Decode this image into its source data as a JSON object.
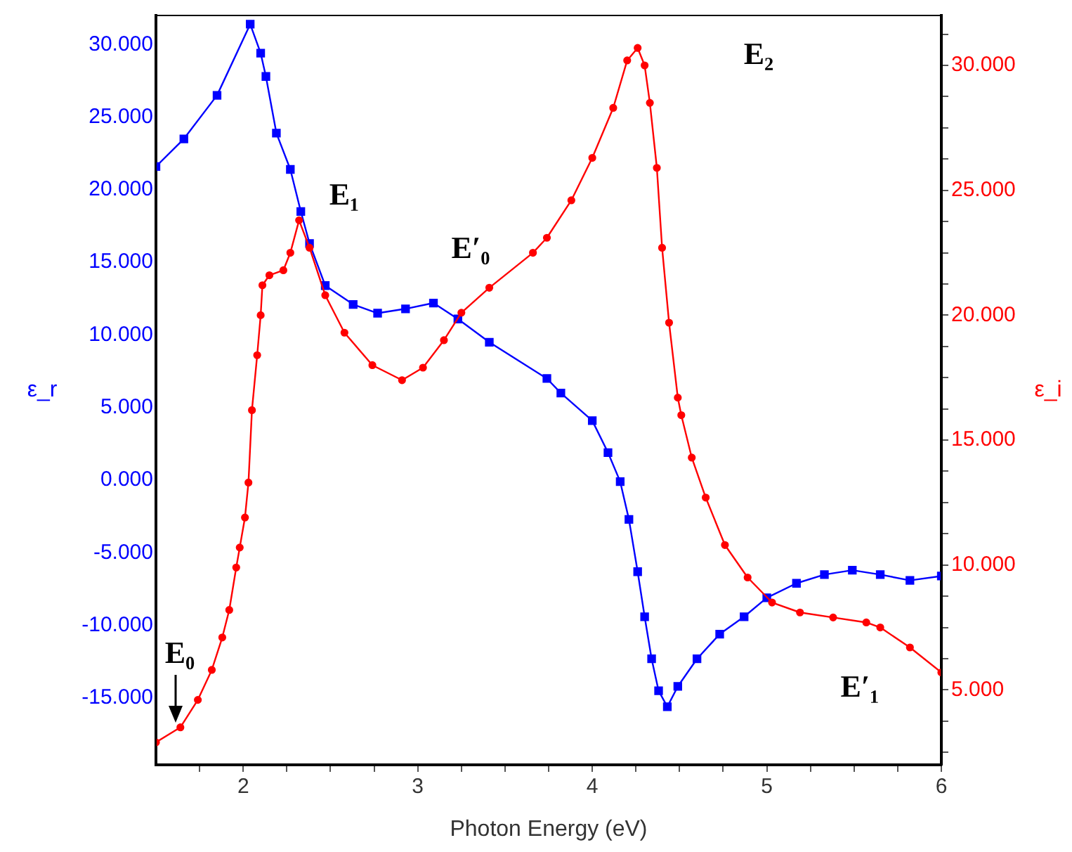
{
  "chart_data": {
    "type": "line",
    "xlabel": "Photon Energy (eV)",
    "ylabel": "ε_r",
    "y2label": "ε_i",
    "xlim": [
      1.5,
      6
    ],
    "xticks": [
      {
        "value": 1.75,
        "label": null
      },
      2,
      {
        "value": 2.25,
        "label": null
      },
      {
        "value": 2.5,
        "label": null
      },
      {
        "value": 2.75,
        "label": null
      },
      3,
      {
        "value": 3.25,
        "label": null
      },
      {
        "value": 3.5,
        "label": null
      },
      {
        "value": 3.75,
        "label": null
      },
      4,
      {
        "value": 4.25,
        "label": null
      },
      {
        "value": 4.5,
        "label": null
      },
      {
        "value": 4.75,
        "label": null
      },
      5,
      {
        "value": 5.25,
        "label": null
      },
      {
        "value": 5.5,
        "label": null
      },
      {
        "value": 5.75,
        "label": null
      },
      6
    ],
    "ylim": [
      -19.6,
      32
    ],
    "yticks": [
      {
        "value": -15,
        "label": "-15.000"
      },
      {
        "value": -10,
        "label": "-10.000"
      },
      {
        "value": -5,
        "label": "-5.000"
      },
      {
        "value": 0,
        "label": "0.000"
      },
      {
        "value": 5,
        "label": "5.000"
      },
      {
        "value": 10,
        "label": "10.000"
      },
      {
        "value": 15,
        "label": "15.000"
      },
      {
        "value": 20,
        "label": "20.000"
      },
      {
        "value": 25,
        "label": "25.000"
      },
      {
        "value": 30,
        "label": "30.000"
      }
    ],
    "y2lim": [
      2,
      32
    ],
    "y2ticks": [
      {
        "value": 2.5,
        "label": null
      },
      {
        "value": 3.75,
        "label": null
      },
      {
        "value": 5,
        "label": "5.000"
      },
      {
        "value": 6.25,
        "label": null
      },
      {
        "value": 7.5,
        "label": null
      },
      {
        "value": 8.75,
        "label": null
      },
      {
        "value": 10,
        "label": "10.000"
      },
      {
        "value": 11.25,
        "label": null
      },
      {
        "value": 12.5,
        "label": null
      },
      {
        "value": 13.75,
        "label": null
      },
      {
        "value": 15,
        "label": "15.000"
      },
      {
        "value": 16.25,
        "label": null
      },
      {
        "value": 17.5,
        "label": null
      },
      {
        "value": 18.75,
        "label": null
      },
      {
        "value": 20,
        "label": "20.000"
      },
      {
        "value": 21.25,
        "label": null
      },
      {
        "value": 22.5,
        "label": null
      },
      {
        "value": 23.75,
        "label": null
      },
      {
        "value": 25,
        "label": "25.000"
      },
      {
        "value": 26.25,
        "label": null
      },
      {
        "value": 27.5,
        "label": null
      },
      {
        "value": 28.75,
        "label": null
      },
      {
        "value": 30,
        "label": "30.000"
      },
      {
        "value": 31.25,
        "label": null
      }
    ],
    "grid": false,
    "legend": false,
    "series": [
      {
        "color": "#0000ff",
        "marker": "square",
        "x": [
          1.5,
          1.66,
          1.85,
          2.04,
          2.1,
          2.13,
          2.19,
          2.27,
          2.33,
          2.38,
          2.47,
          2.63,
          2.77,
          2.93,
          3.09,
          3.23,
          3.41,
          3.74,
          3.82,
          4.0,
          4.09,
          4.16,
          4.21,
          4.26,
          4.3,
          4.34,
          4.38,
          4.43,
          4.49,
          4.6,
          4.73,
          4.87,
          5.0,
          5.17,
          5.33,
          5.49,
          5.65,
          5.82,
          6.0
        ],
        "values": [
          21.6,
          23.5,
          26.5,
          31.4,
          29.4,
          27.8,
          23.9,
          21.4,
          18.5,
          16.3,
          13.4,
          12.1,
          11.5,
          11.8,
          12.2,
          11.1,
          9.5,
          7.0,
          6.0,
          4.1,
          1.9,
          -0.1,
          -2.7,
          -6.3,
          -9.4,
          -12.3,
          -14.5,
          -15.6,
          -14.2,
          -12.3,
          -10.6,
          -9.4,
          -8.1,
          -7.1,
          -6.5,
          -6.2,
          -6.5,
          -6.9,
          -6.6
        ]
      },
      {
        "color": "#ff0000",
        "marker": "circle",
        "axis": "y2",
        "x": [
          1.5,
          1.64,
          1.74,
          1.82,
          1.88,
          1.92,
          1.96,
          1.98,
          2.01,
          2.03,
          2.05,
          2.08,
          2.1,
          2.11,
          2.15,
          2.23,
          2.27,
          2.32,
          2.38,
          2.47,
          2.58,
          2.74,
          2.91,
          3.03,
          3.15,
          3.25,
          3.41,
          3.66,
          3.74,
          3.88,
          4.0,
          4.12,
          4.2,
          4.26,
          4.3,
          4.33,
          4.37,
          4.4,
          4.44,
          4.49,
          4.51,
          4.57,
          4.65,
          4.76,
          4.89,
          5.03,
          5.19,
          5.38,
          5.57,
          5.65,
          5.82,
          6.0
        ],
        "values": [
          2.9,
          3.5,
          4.6,
          5.8,
          7.1,
          8.2,
          9.9,
          10.7,
          11.9,
          13.3,
          16.2,
          18.4,
          20.0,
          21.2,
          21.6,
          21.8,
          22.5,
          23.8,
          22.7,
          20.8,
          19.3,
          18.0,
          17.4,
          17.9,
          19.0,
          20.1,
          21.1,
          22.5,
          23.1,
          24.6,
          26.3,
          28.3,
          30.2,
          30.7,
          30.0,
          28.5,
          25.9,
          22.7,
          19.7,
          16.7,
          16.0,
          14.3,
          12.7,
          10.8,
          9.5,
          8.5,
          8.1,
          7.9,
          7.7,
          7.5,
          6.7,
          5.7
        ]
      }
    ],
    "annotations": [
      "E₀",
      "E₁",
      "E′₀",
      "E₂",
      "E′₁"
    ]
  }
}
